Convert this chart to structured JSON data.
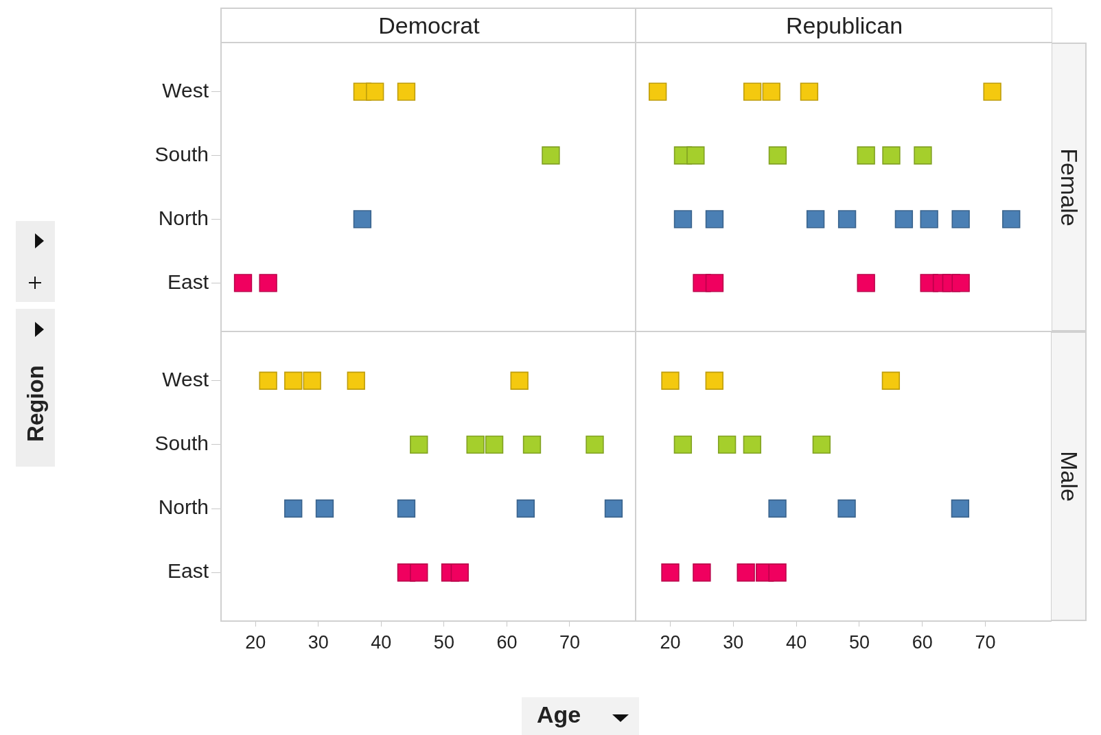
{
  "chart_data": [
    {
      "type": "scatter",
      "title": "Democrat",
      "orientation": "horizontal",
      "categories": [
        "West",
        "South",
        "North",
        "East"
      ],
      "xlim": [
        14.5,
        80.5
      ],
      "xticks": [
        20,
        30,
        40,
        50,
        60,
        70
      ],
      "marker": "square",
      "tick_labels": "y",
      "series": [
        {
          "color": "#f4c90f",
          "x": [
            "West",
            "West",
            "West"
          ],
          "values": [
            37,
            39,
            44
          ]
        },
        {
          "color": "#a5cf2c",
          "x": [
            "South"
          ],
          "values": [
            67
          ]
        },
        {
          "color": "#4a7fb4",
          "x": [
            "North"
          ],
          "values": [
            37
          ]
        },
        {
          "color": "#f0005f",
          "x": [
            "East",
            "East"
          ],
          "values": [
            18,
            22
          ]
        }
      ]
    },
    {
      "type": "scatter",
      "title": "Republican",
      "y2label": "Female",
      "orientation": "horizontal",
      "categories": [
        "West",
        "South",
        "North",
        "East"
      ],
      "xlim": [
        14.5,
        80.5
      ],
      "xticks": [
        20,
        30,
        40,
        50,
        60,
        70
      ],
      "marker": "square",
      "tick_labels": false,
      "series": [
        {
          "color": "#f4c90f",
          "x": [
            "West",
            "West",
            "West",
            "West",
            "West"
          ],
          "values": [
            18,
            33,
            36,
            42,
            71
          ]
        },
        {
          "color": "#a5cf2c",
          "x": [
            "South",
            "South",
            "South",
            "South",
            "South",
            "South"
          ],
          "values": [
            22,
            24,
            37,
            51,
            55,
            60
          ]
        },
        {
          "color": "#4a7fb4",
          "x": [
            "North",
            "North",
            "North",
            "North",
            "North",
            "North",
            "North",
            "North"
          ],
          "values": [
            22,
            27,
            43,
            48,
            57,
            61,
            66,
            74
          ]
        },
        {
          "color": "#f0005f",
          "x": [
            "East",
            "East",
            "East",
            "East",
            "East",
            "East",
            "East"
          ],
          "values": [
            25,
            27,
            51,
            61,
            63,
            64.5,
            66
          ]
        }
      ]
    },
    {
      "type": "scatter",
      "xlabel": "Age",
      "ylabel": "Region",
      "orientation": "horizontal",
      "categories": [
        "West",
        "South",
        "North",
        "East"
      ],
      "xlim": [
        14.5,
        80.5
      ],
      "xticks": [
        20,
        30,
        40,
        50,
        60,
        70
      ],
      "marker": "square",
      "series": [
        {
          "color": "#f4c90f",
          "x": [
            "West",
            "West",
            "West",
            "West",
            "West"
          ],
          "values": [
            22,
            26,
            29,
            36,
            62
          ]
        },
        {
          "color": "#a5cf2c",
          "x": [
            "South",
            "South",
            "South",
            "South",
            "South"
          ],
          "values": [
            46,
            55,
            58,
            64,
            74
          ]
        },
        {
          "color": "#4a7fb4",
          "x": [
            "North",
            "North",
            "North",
            "North",
            "North"
          ],
          "values": [
            26,
            31,
            44,
            63,
            77
          ]
        },
        {
          "color": "#f0005f",
          "x": [
            "East",
            "East",
            "East",
            "East"
          ],
          "values": [
            44,
            46,
            51,
            52.5
          ]
        }
      ]
    },
    {
      "type": "scatter",
      "y2label": "Male",
      "orientation": "horizontal",
      "categories": [
        "West",
        "South",
        "North",
        "East"
      ],
      "xlim": [
        14.5,
        80.5
      ],
      "xticks": [
        20,
        30,
        40,
        50,
        60,
        70
      ],
      "marker": "square",
      "tick_labels": "x",
      "series": [
        {
          "color": "#f4c90f",
          "x": [
            "West",
            "West",
            "West"
          ],
          "values": [
            20,
            27,
            55
          ]
        },
        {
          "color": "#a5cf2c",
          "x": [
            "South",
            "South",
            "South",
            "South"
          ],
          "values": [
            22,
            29,
            33,
            44
          ]
        },
        {
          "color": "#4a7fb4",
          "x": [
            "North",
            "North",
            "North"
          ],
          "values": [
            37,
            48,
            66
          ]
        },
        {
          "color": "#f0005f",
          "x": [
            "East",
            "East",
            "East",
            "East",
            "East"
          ],
          "values": [
            20,
            25,
            32,
            35,
            37
          ]
        }
      ]
    }
  ]
}
